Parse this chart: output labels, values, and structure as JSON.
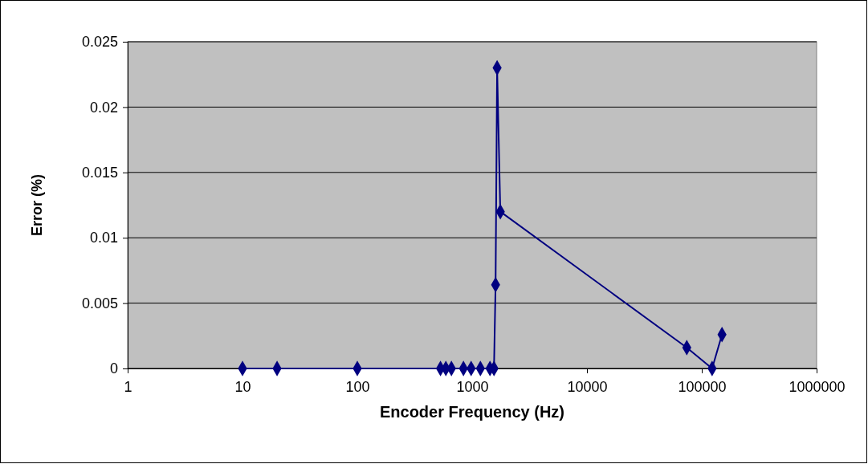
{
  "chart_data": {
    "type": "line",
    "xlabel": "Encoder Frequency (Hz)",
    "ylabel": "Error (%)",
    "x": [
      10,
      20,
      100,
      530,
      590,
      660,
      840,
      980,
      1180,
      1430,
      1550,
      1600,
      1650,
      1760,
      74000,
      123000,
      150000
    ],
    "series": [
      {
        "color": "#000080",
        "values": [
          0,
          0,
          0,
          0,
          0,
          0,
          0,
          0,
          0,
          0,
          0,
          0.0064,
          0.023,
          0.012,
          0.0016,
          0,
          0.0026
        ]
      }
    ],
    "log": "x",
    "xlim": [
      1,
      1000000
    ],
    "xticks": [
      1,
      10,
      100,
      1000,
      10000,
      100000,
      1000000
    ],
    "ylim": [
      0,
      0.025
    ],
    "yticks": [
      0,
      0.005,
      0.01,
      0.015,
      0.02,
      0.025
    ],
    "grid": "y",
    "marker": "diamond",
    "line_style": "solid"
  }
}
